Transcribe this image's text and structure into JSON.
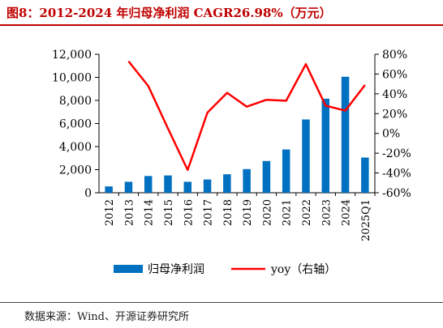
{
  "header": {
    "title": "图8：2012-2024 年归母净利润 CAGR26.98%（万元）"
  },
  "footer": {
    "source": "数据来源：Wind、开源证券研究所"
  },
  "colors": {
    "title": "#c00000",
    "bar": "#0070c0",
    "line": "#ff0000"
  },
  "chart_data": {
    "type": "bar",
    "categories": [
      "2012",
      "2013",
      "2014",
      "2015",
      "2016",
      "2017",
      "2018",
      "2019",
      "2020",
      "2021",
      "2022",
      "2023",
      "2024",
      "2025Q1"
    ],
    "series": [
      {
        "name": "归母净利润",
        "type": "bar",
        "axis": "left",
        "values": [
          550,
          950,
          1450,
          1500,
          950,
          1150,
          1600,
          2050,
          2750,
          3750,
          6350,
          8150,
          10050,
          3050
        ]
      },
      {
        "name": "yoy（右轴）",
        "type": "line",
        "axis": "right",
        "values": [
          null,
          73,
          48,
          5,
          -37,
          21,
          41,
          27,
          34,
          33,
          70,
          28,
          23,
          49
        ]
      }
    ],
    "y_left": {
      "min": 0,
      "max": 12000,
      "ticks": [
        "0",
        "2,000",
        "4,000",
        "6,000",
        "8,000",
        "10,000",
        "12,000"
      ]
    },
    "y_right": {
      "min": -60,
      "max": 80,
      "ticks": [
        "-60%",
        "-40%",
        "-20%",
        "0%",
        "20%",
        "40%",
        "60%",
        "80%"
      ]
    },
    "legend_position": "bottom",
    "grid": false
  }
}
